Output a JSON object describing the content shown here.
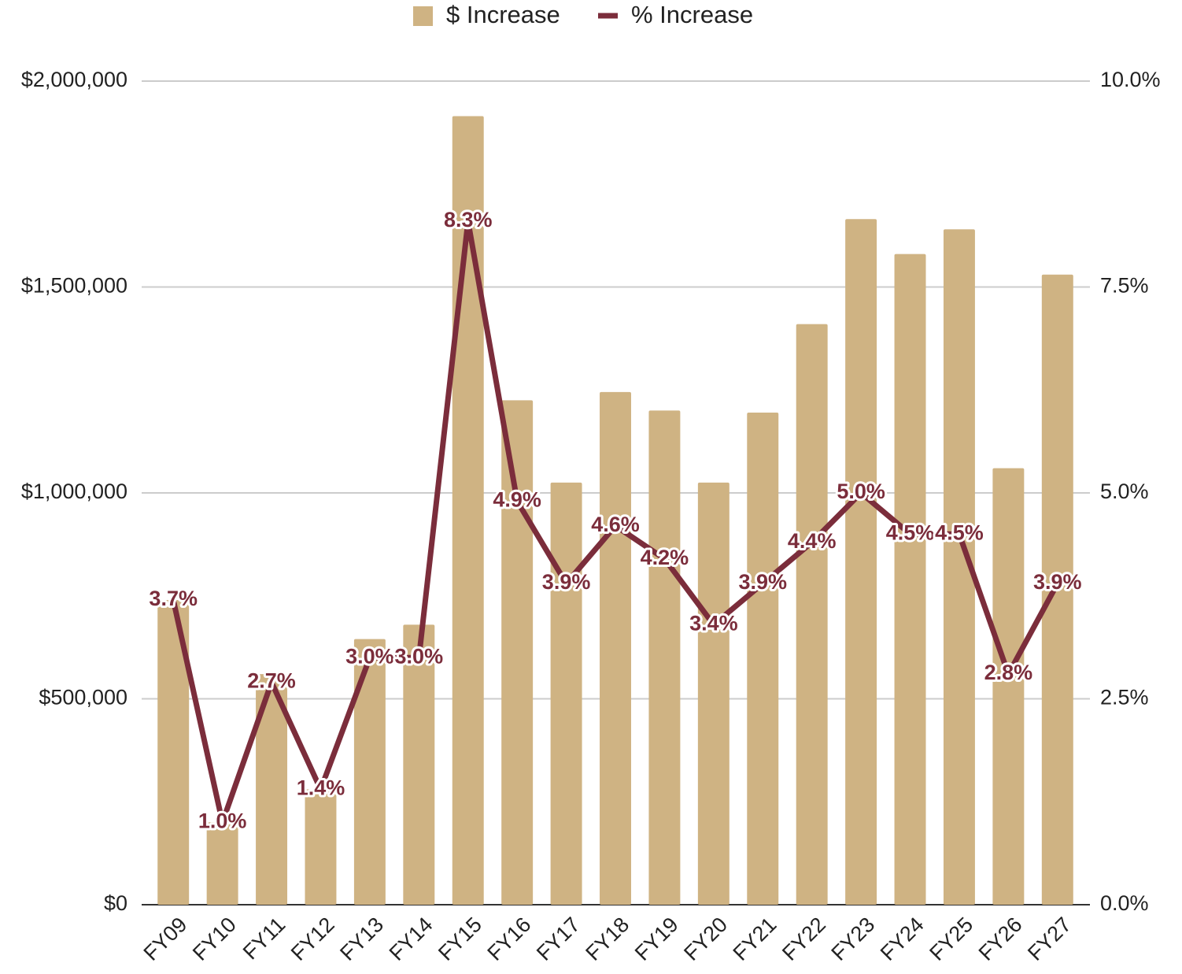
{
  "chart_data": {
    "type": "bar-line",
    "categories": [
      "FY09",
      "FY10",
      "FY11",
      "FY12",
      "FY13",
      "FY14",
      "FY15",
      "FY16",
      "FY17",
      "FY18",
      "FY19",
      "FY20",
      "FY21",
      "FY22",
      "FY23",
      "FY24",
      "FY25",
      "FY26",
      "FY27"
    ],
    "series": [
      {
        "name": "$ Increase",
        "type": "bar",
        "color": "#cfb383",
        "values": [
          740000,
          200000,
          560000,
          280000,
          645000,
          680000,
          1915000,
          1225000,
          1025000,
          1245000,
          1200000,
          1025000,
          1195000,
          1410000,
          1665000,
          1580000,
          1640000,
          1060000,
          1530000
        ]
      },
      {
        "name": "% Increase",
        "type": "line",
        "axis": "y2",
        "color": "#7b2d3b",
        "values": [
          3.7,
          1.0,
          2.7,
          1.4,
          3.0,
          3.0,
          8.3,
          4.9,
          3.9,
          4.6,
          4.2,
          3.4,
          3.9,
          4.4,
          5.0,
          4.5,
          4.5,
          2.8,
          3.9
        ],
        "value_labels": [
          "3.7%",
          "1.0%",
          "2.7%",
          "1.4%",
          "3.0%",
          "3.0%",
          "8.3%",
          "4.9%",
          "3.9%",
          "4.6%",
          "4.2%",
          "3.4%",
          "3.9%",
          "4.4%",
          "5.0%",
          "4.5%",
          "4.5%",
          "2.8%",
          "3.9%"
        ]
      }
    ],
    "ylim": [
      0,
      2000000
    ],
    "yticks": [
      {
        "value": 0,
        "label": "$0"
      },
      {
        "value": 500000,
        "label": "$500,000"
      },
      {
        "value": 1000000,
        "label": "$1,000,000"
      },
      {
        "value": 1500000,
        "label": "$1,500,000"
      },
      {
        "value": 2000000,
        "label": "$2,000,000"
      }
    ],
    "y2lim": [
      0,
      10
    ],
    "y2ticks": [
      {
        "value": 0,
        "label": "0.0%"
      },
      {
        "value": 2.5,
        "label": "2.5%"
      },
      {
        "value": 5,
        "label": "5.0%"
      },
      {
        "value": 7.5,
        "label": "7.5%"
      },
      {
        "value": 10,
        "label": "10.0%"
      }
    ],
    "grid": true,
    "legend": "top"
  }
}
